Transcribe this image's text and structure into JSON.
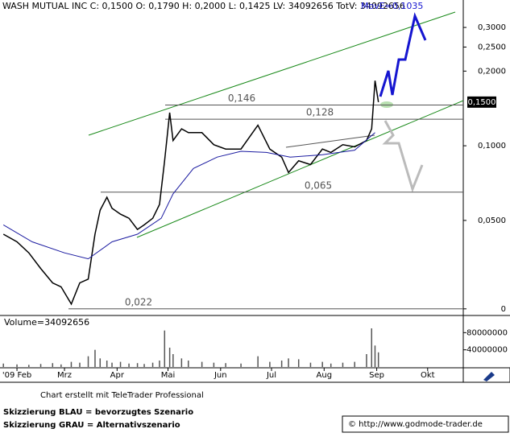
{
  "chart_data": [
    {
      "type": "line",
      "log_scale": true,
      "title": "WASH MUTUAL INC C: 0,1500 O: 0,1790 H: 0,2000 L: 0,1425 LV: 34092656 TotV: 34092656",
      "subtitle": "MovE=0,1035",
      "xlim": [
        -10,
        263
      ],
      "ylim": [
        0.021,
        0.387
      ],
      "xticks": [
        {
          "value": 0,
          "label": "'09 Feb"
        },
        {
          "value": 28,
          "label": "Mrz"
        },
        {
          "value": 59,
          "label": "Apr"
        },
        {
          "value": 89,
          "label": "Mai"
        },
        {
          "value": 120,
          "label": "Jun"
        },
        {
          "value": 150,
          "label": "Jul"
        },
        {
          "value": 181,
          "label": "Aug"
        },
        {
          "value": 212,
          "label": "Sep"
        },
        {
          "value": 242,
          "label": "Okt"
        }
      ],
      "yticks": [
        {
          "value": 0.3,
          "label": "0,3000"
        },
        {
          "value": 0.25,
          "label": "0,2500"
        },
        {
          "value": 0.2,
          "label": "0,2000"
        },
        {
          "value": 0.1,
          "label": "0,1000"
        },
        {
          "value": 0.05,
          "label": "0,0500"
        },
        {
          "value": 0.022,
          "label": "0"
        }
      ],
      "last_price": {
        "value": 0.15,
        "label": "0,1500"
      },
      "levels": [
        {
          "value": 0.146,
          "label": "0,146"
        },
        {
          "value": 0.128,
          "label": "0,128"
        },
        {
          "value": 0.065,
          "label": "0,065"
        },
        {
          "value": 0.022,
          "label": "0,022"
        }
      ],
      "series": [
        {
          "color": "#000000",
          "x": [
            -8,
            0,
            7,
            14,
            21,
            26,
            32,
            37,
            42,
            46,
            49,
            53,
            56,
            61,
            66,
            71,
            75,
            80,
            84,
            87,
            90,
            92,
            97,
            101,
            109,
            116,
            123,
            132,
            142,
            149,
            156,
            160,
            166,
            173,
            180,
            185,
            192,
            199,
            206,
            209,
            211,
            213
          ],
          "values": [
            0.044,
            0.041,
            0.037,
            0.032,
            0.028,
            0.027,
            0.023,
            0.028,
            0.029,
            0.044,
            0.055,
            0.062,
            0.056,
            0.053,
            0.051,
            0.046,
            0.048,
            0.051,
            0.058,
            0.087,
            0.136,
            0.105,
            0.117,
            0.113,
            0.113,
            0.101,
            0.097,
            0.097,
            0.121,
            0.097,
            0.09,
            0.078,
            0.087,
            0.084,
            0.097,
            0.094,
            0.101,
            0.099,
            0.105,
            0.117,
            0.183,
            0.15
          ]
        },
        {
          "color": "#1a1aa0",
          "x": [
            -8,
            9,
            28,
            42,
            56,
            71,
            85,
            92,
            104,
            118,
            132,
            147,
            161,
            180,
            199,
            211
          ],
          "values": [
            0.048,
            0.041,
            0.037,
            0.035,
            0.041,
            0.044,
            0.051,
            0.064,
            0.081,
            0.09,
            0.095,
            0.094,
            0.09,
            0.092,
            0.096,
            0.113
          ]
        }
      ]
    },
    {
      "type": "bar",
      "title": "Volume=34092656",
      "color": "#555555",
      "xlim": [
        -10,
        263
      ],
      "ylim": [
        0,
        105000000
      ],
      "yticks": [
        80000000,
        40000000
      ],
      "x": [
        -8,
        0,
        7,
        14,
        21,
        26,
        32,
        37,
        42,
        46,
        49,
        53,
        56,
        61,
        66,
        71,
        75,
        80,
        84,
        87,
        90,
        92,
        97,
        101,
        109,
        116,
        123,
        132,
        142,
        149,
        156,
        160,
        166,
        173,
        180,
        185,
        192,
        199,
        206,
        209,
        211,
        213
      ],
      "values": [
        8000000,
        6000000,
        5000000,
        7000000,
        9000000,
        6000000,
        12000000,
        10000000,
        25000000,
        40000000,
        20000000,
        15000000,
        10000000,
        12000000,
        8000000,
        9000000,
        7000000,
        10000000,
        15000000,
        85000000,
        45000000,
        30000000,
        20000000,
        15000000,
        12000000,
        10000000,
        9000000,
        8000000,
        25000000,
        12000000,
        15000000,
        20000000,
        18000000,
        10000000,
        12000000,
        8000000,
        10000000,
        12000000,
        30000000,
        90000000,
        50000000,
        34092656
      ]
    }
  ],
  "footer": {
    "credit": "Chart erstellt mit TeleTrader Professional",
    "notes": [
      "Skizzierung BLAU = bevorzugtes Szenario",
      "Skizzierung GRAU = Alternativszenario"
    ],
    "copyright": "© http://www.godmode-trader.de"
  }
}
